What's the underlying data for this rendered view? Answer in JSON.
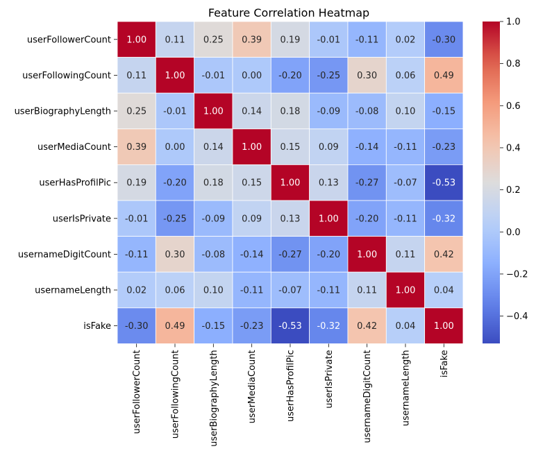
{
  "chart_data": {
    "type": "heatmap",
    "title": "Feature Correlation Heatmap",
    "xlabel": "",
    "ylabel": "",
    "rows": [
      "userFollowerCount",
      "userFollowingCount",
      "userBiographyLength",
      "userMediaCount",
      "userHasProfilPic",
      "userIsPrivate",
      "usernameDigitCount",
      "usernameLength",
      "isFake"
    ],
    "columns": [
      "userFollowerCount",
      "userFollowingCount",
      "userBiographyLength",
      "userMediaCount",
      "userHasProfilPic",
      "userIsPrivate",
      "usernameDigitCount",
      "usernameLength",
      "isFake"
    ],
    "values": [
      [
        1.0,
        0.11,
        0.25,
        0.39,
        0.19,
        -0.01,
        -0.11,
        0.02,
        -0.3
      ],
      [
        0.11,
        1.0,
        -0.01,
        0.0,
        -0.2,
        -0.25,
        0.3,
        0.06,
        0.49
      ],
      [
        0.25,
        -0.01,
        1.0,
        0.14,
        0.18,
        -0.09,
        -0.08,
        0.1,
        -0.15
      ],
      [
        0.39,
        0.0,
        0.14,
        1.0,
        0.15,
        0.09,
        -0.14,
        -0.11,
        -0.23
      ],
      [
        0.19,
        -0.2,
        0.18,
        0.15,
        1.0,
        0.13,
        -0.27,
        -0.07,
        -0.53
      ],
      [
        -0.01,
        -0.25,
        -0.09,
        0.09,
        0.13,
        1.0,
        -0.2,
        -0.11,
        -0.32
      ],
      [
        -0.11,
        0.3,
        -0.08,
        -0.14,
        -0.27,
        -0.2,
        1.0,
        0.11,
        0.42
      ],
      [
        0.02,
        0.06,
        0.1,
        -0.11,
        -0.07,
        -0.11,
        0.11,
        1.0,
        0.04
      ],
      [
        -0.3,
        0.49,
        -0.15,
        -0.23,
        -0.53,
        -0.32,
        0.42,
        0.04,
        1.0
      ]
    ],
    "value_format": "2 decimals",
    "colormap": "coolwarm",
    "color_range": [
      -0.53,
      1.0
    ],
    "colorbar": {
      "ticks": [
        1.0,
        0.8,
        0.6,
        0.4,
        0.2,
        0.0,
        -0.2,
        -0.4
      ],
      "tick_labels": [
        "1.0",
        "0.8",
        "0.6",
        "0.4",
        "0.2",
        "0.0",
        "−0.2",
        "−0.4"
      ],
      "placement": "right"
    },
    "grid_lines_color": "#ffffff",
    "annotation_colors": {
      "dark_cell_text": "#ffffff",
      "light_cell_text": "#262626"
    }
  }
}
